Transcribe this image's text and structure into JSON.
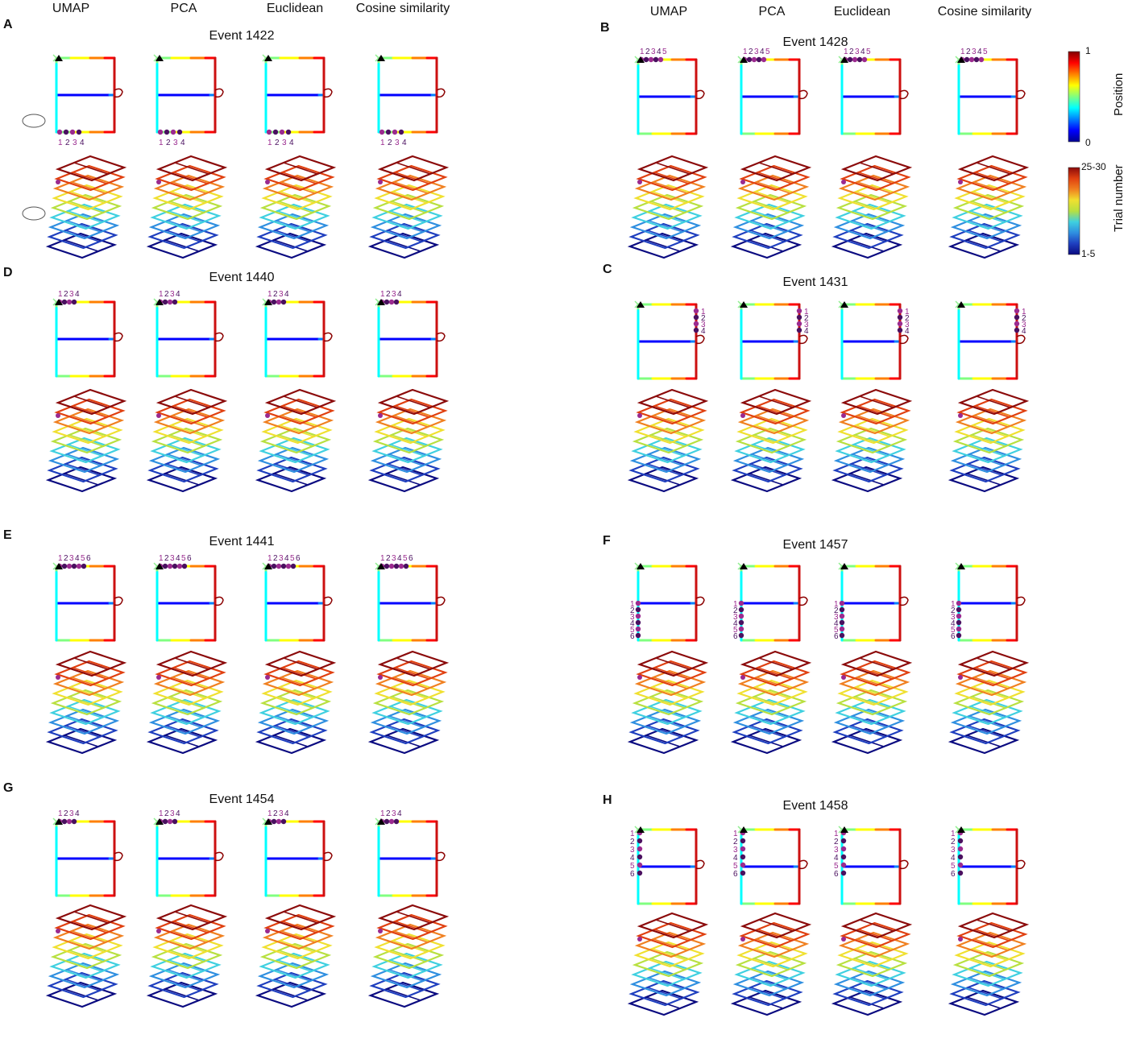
{
  "headers": {
    "left": [
      "UMAP",
      "PCA",
      "Euclidean",
      "Cosine similarity"
    ],
    "right": [
      "UMAP",
      "PCA",
      "Euclidean",
      "Cosine similarity"
    ]
  },
  "panels": [
    {
      "letter": "A",
      "event": "Event 1422",
      "labels": [
        "1",
        "2",
        "3",
        "4"
      ],
      "pos": "bottom-left",
      "mouse": true
    },
    {
      "letter": "B",
      "event": "Event 1428",
      "labels": [
        "1",
        "2",
        "3",
        "4",
        "5"
      ],
      "pos": "top-left"
    },
    {
      "letter": "D",
      "event": "Event 1440",
      "labels": [
        "1",
        "2",
        "3",
        "4"
      ],
      "pos": "top-left"
    },
    {
      "letter": "C",
      "event": "Event 1431",
      "labels": [
        "1",
        "2",
        "3",
        "4"
      ],
      "pos": "right-top"
    },
    {
      "letter": "E",
      "event": "Event 1441",
      "labels": [
        "1",
        "2",
        "3",
        "4",
        "5",
        "6"
      ],
      "pos": "top-left"
    },
    {
      "letter": "F",
      "event": "Event 1457",
      "labels": [
        "1",
        "2",
        "3",
        "4",
        "5",
        "6"
      ],
      "pos": "left-mid"
    },
    {
      "letter": "G",
      "event": "Event 1454",
      "labels": [
        "1",
        "2",
        "3",
        "4"
      ],
      "pos": "top-left"
    },
    {
      "letter": "H",
      "event": "Event 1458",
      "labels": [
        "1",
        "2",
        "3",
        "4",
        "5",
        "6"
      ],
      "pos": "left-top"
    }
  ],
  "colorbars": {
    "position": {
      "title": "Position",
      "max": "1",
      "min": "0"
    },
    "trial": {
      "title": "Trial number",
      "max": "25-30",
      "min": "1-5"
    }
  },
  "colors": {
    "jet": [
      "#00008f",
      "#0000ff",
      "#0080ff",
      "#00ffff",
      "#80ff80",
      "#ffff00",
      "#ff8000",
      "#ff0000",
      "#800000"
    ],
    "layers": [
      "#0a0a80",
      "#1f3fbf",
      "#2f8fe0",
      "#3fd0e0",
      "#b8e040",
      "#f0e030",
      "#f08020",
      "#e04010",
      "#8b0a0a"
    ],
    "event": "#9b2a8f",
    "event_dark": "#4a1060"
  }
}
